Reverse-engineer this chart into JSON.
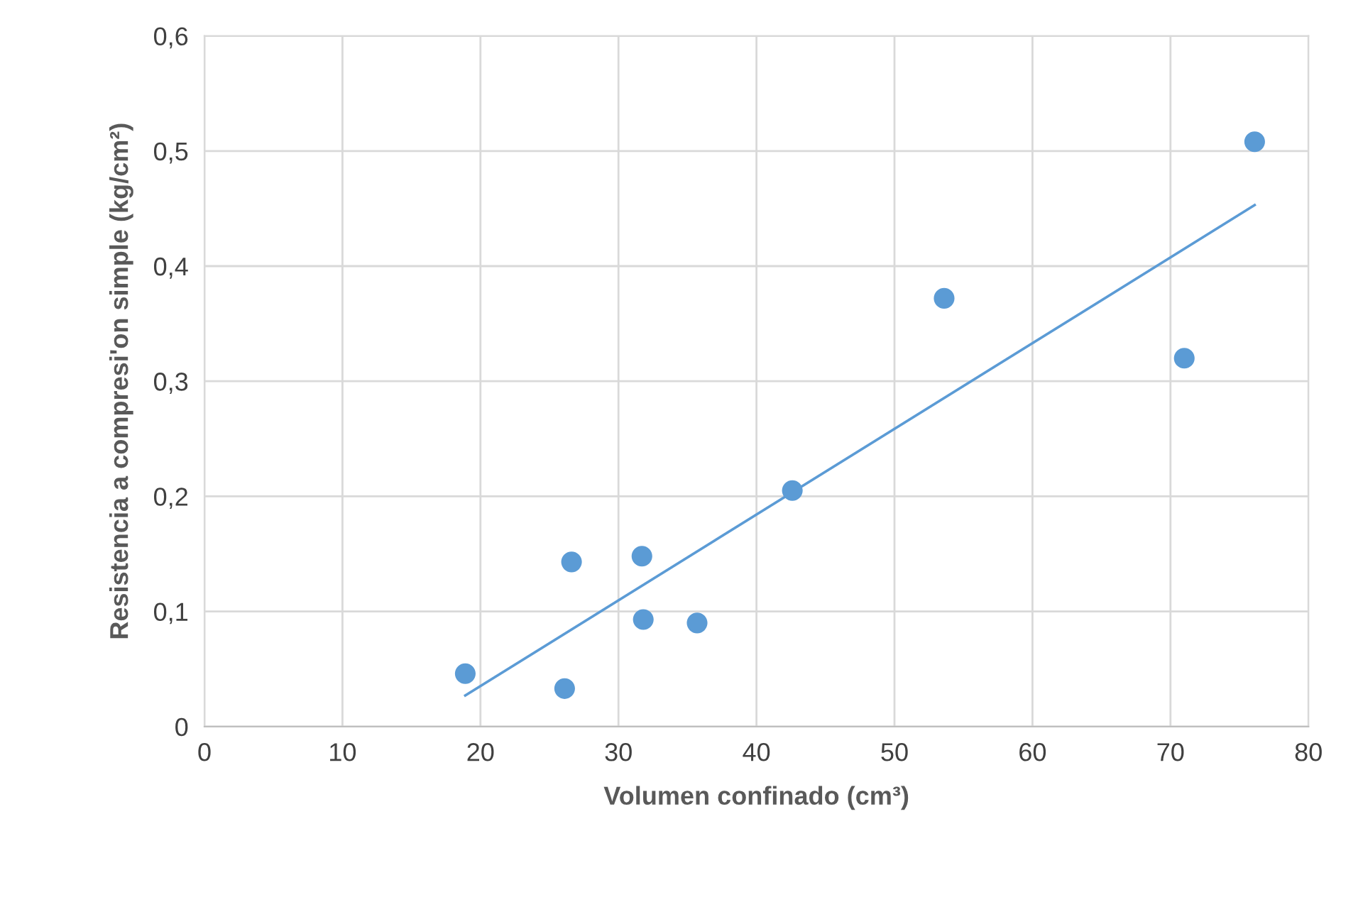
{
  "chart_data": {
    "type": "scatter",
    "xlabel": "Volumen confinado (cm³)",
    "ylabel": "Resistencia a compresi'on simple (kg/cm²)",
    "xlim": [
      0,
      80
    ],
    "xticks": [
      0,
      10,
      20,
      30,
      40,
      50,
      60,
      70,
      80
    ],
    "ylim": [
      0,
      0.6
    ],
    "yticks": [
      {
        "value": 0,
        "label": "0"
      },
      {
        "value": 0.1,
        "label": "0,1"
      },
      {
        "value": 0.2,
        "label": "0,2"
      },
      {
        "value": 0.3,
        "label": "0,3"
      },
      {
        "value": 0.4,
        "label": "0,4"
      },
      {
        "value": 0.5,
        "label": "0,5"
      },
      {
        "value": 0.6,
        "label": "0,6"
      }
    ],
    "grid": true,
    "marker": "circle",
    "series": [
      {
        "color": "#5b9bd5",
        "x": [
          18.9,
          26.1,
          26.6,
          31.7,
          31.8,
          35.7,
          42.6,
          53.6,
          71.0,
          76.1
        ],
        "values": [
          0.046,
          0.033,
          0.143,
          0.148,
          0.093,
          0.09,
          0.205,
          0.372,
          0.32,
          0.508
        ]
      },
      {
        "type": "line",
        "color": "#5b9bd5",
        "marker": "none",
        "x": [
          18.9,
          76.1
        ],
        "values": [
          0.027,
          0.453
        ]
      }
    ]
  }
}
